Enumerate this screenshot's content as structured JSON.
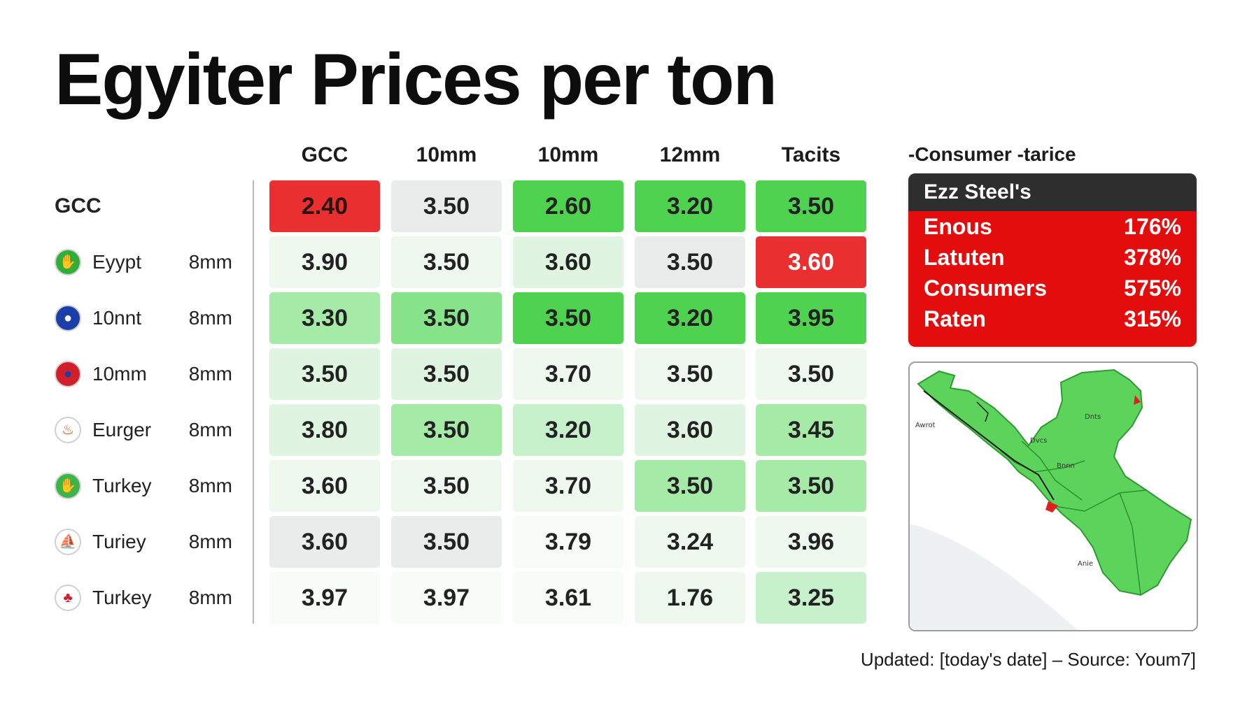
{
  "title": "Egyiter Prices per ton",
  "columns": [
    "GCC",
    "10mm",
    "10mm",
    "12mm",
    "Tacits"
  ],
  "rows": [
    {
      "name": "GCC",
      "size": "",
      "flag_icon": "",
      "cells": [
        {
          "value": "2.40",
          "tone": "red"
        },
        {
          "value": "3.50",
          "tone": "grey"
        },
        {
          "value": "2.60",
          "tone": "g6"
        },
        {
          "value": "3.20",
          "tone": "g6"
        },
        {
          "value": "3.50",
          "tone": "g6"
        }
      ]
    },
    {
      "name": "Eyypt",
      "size": "8mm",
      "flag_icon": "green-flag-icon",
      "cells": [
        {
          "value": "3.90",
          "tone": "g1"
        },
        {
          "value": "3.50",
          "tone": "g1"
        },
        {
          "value": "3.60",
          "tone": "g2"
        },
        {
          "value": "3.50",
          "tone": "grey"
        },
        {
          "value": "3.60",
          "tone": "red"
        }
      ]
    },
    {
      "name": "10nnt",
      "size": "8mm",
      "flag_icon": "blue-globe-flag-icon",
      "cells": [
        {
          "value": "3.30",
          "tone": "g4"
        },
        {
          "value": "3.50",
          "tone": "g5"
        },
        {
          "value": "3.50",
          "tone": "g6"
        },
        {
          "value": "3.20",
          "tone": "g6"
        },
        {
          "value": "3.95",
          "tone": "g6"
        }
      ]
    },
    {
      "name": "10mm",
      "size": "8mm",
      "flag_icon": "red-blue-flag-icon",
      "cells": [
        {
          "value": "3.50",
          "tone": "g2"
        },
        {
          "value": "3.50",
          "tone": "g2"
        },
        {
          "value": "3.70",
          "tone": "g1"
        },
        {
          "value": "3.50",
          "tone": "g1"
        },
        {
          "value": "3.50",
          "tone": "g1"
        }
      ]
    },
    {
      "name": "Eurger",
      "size": "8mm",
      "flag_icon": "orange-flag-icon",
      "cells": [
        {
          "value": "3.80",
          "tone": "g2"
        },
        {
          "value": "3.50",
          "tone": "g4"
        },
        {
          "value": "3.20",
          "tone": "g3"
        },
        {
          "value": "3.60",
          "tone": "g2"
        },
        {
          "value": "3.45",
          "tone": "g4"
        }
      ]
    },
    {
      "name": "Turkey",
      "size": "8mm",
      "flag_icon": "green-hand-flag-icon",
      "cells": [
        {
          "value": "3.60",
          "tone": "g1"
        },
        {
          "value": "3.50",
          "tone": "g1"
        },
        {
          "value": "3.70",
          "tone": "g1"
        },
        {
          "value": "3.50",
          "tone": "g4"
        },
        {
          "value": "3.50",
          "tone": "g4"
        }
      ]
    },
    {
      "name": "Turiey",
      "size": "8mm",
      "flag_icon": "white-boat-flag-icon",
      "cells": [
        {
          "value": "3.60",
          "tone": "grey"
        },
        {
          "value": "3.50",
          "tone": "grey"
        },
        {
          "value": "3.79",
          "tone": "g0"
        },
        {
          "value": "3.24",
          "tone": "g1"
        },
        {
          "value": "3.96",
          "tone": "g1"
        }
      ]
    },
    {
      "name": "Turkey",
      "size": "8mm",
      "flag_icon": "red-crest-flag-icon",
      "cells": [
        {
          "value": "3.97",
          "tone": "g0"
        },
        {
          "value": "3.97",
          "tone": "g0"
        },
        {
          "value": "3.61",
          "tone": "g0"
        },
        {
          "value": "1.76",
          "tone": "g1"
        },
        {
          "value": "3.25",
          "tone": "g3"
        }
      ]
    }
  ],
  "right_header": "-Consumer -tarice",
  "panel": {
    "title": "Ezz Steel's",
    "rows": [
      {
        "label": "Enous",
        "value": "176%"
      },
      {
        "label": "Latuten",
        "value": "378%"
      },
      {
        "label": "Consumers",
        "value": "575%"
      },
      {
        "label": "Raten",
        "value": "315%"
      }
    ]
  },
  "map": {
    "labels": [
      "Dnts",
      "Dvcs",
      "Bnnn",
      "Awrot",
      "Anie"
    ]
  },
  "footer": "Updated: [today's date] – Source: Youm7]",
  "colors": {
    "red": "#e92f2f",
    "green": "#50d251",
    "panel_red": "#e40d0d",
    "panel_header": "#2e2e2e",
    "map_green": "#5cd45c"
  }
}
